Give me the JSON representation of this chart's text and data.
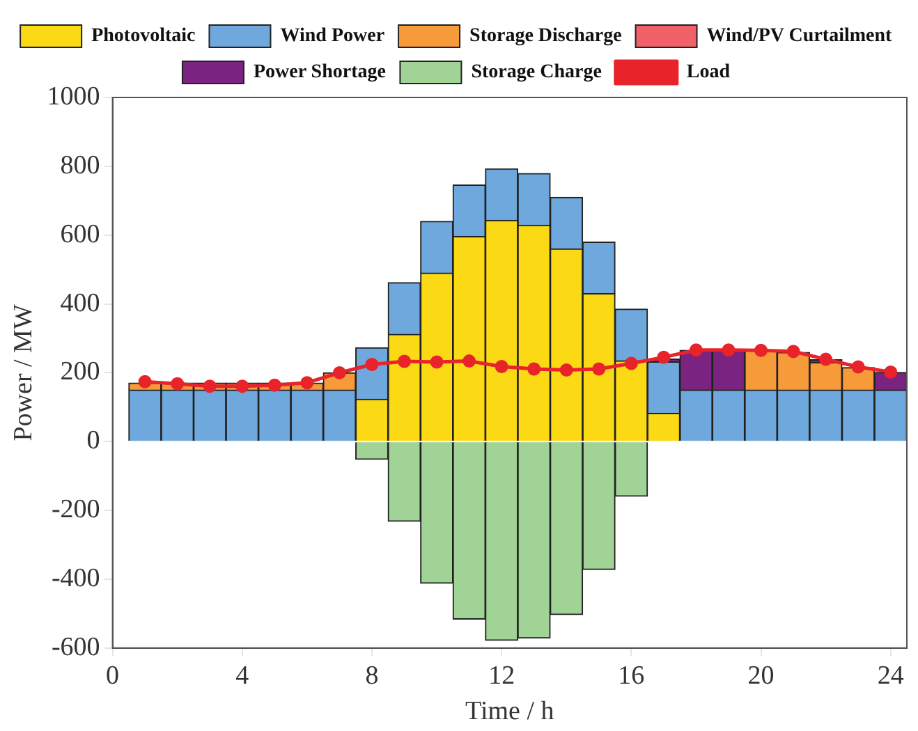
{
  "chart_data": {
    "type": "bar",
    "stacked": true,
    "xlabel": "Time / h",
    "ylabel": "Power / MW",
    "x": [
      1,
      2,
      3,
      4,
      5,
      6,
      7,
      8,
      9,
      10,
      11,
      12,
      13,
      14,
      15,
      16,
      17,
      18,
      19,
      20,
      21,
      22,
      23,
      24
    ],
    "xlim": [
      0,
      24.5
    ],
    "xticks": [
      0,
      4,
      8,
      12,
      16,
      20,
      24
    ],
    "ylim": [
      -600,
      1000
    ],
    "yticks": [
      -600,
      -400,
      -200,
      0,
      200,
      400,
      600,
      800,
      1000
    ],
    "grid": false,
    "legend": "top",
    "marker": "circle",
    "line_style": "solid",
    "series": [
      {
        "name": "Photovoltaic",
        "color": "#fbd914",
        "values": [
          null,
          null,
          null,
          null,
          null,
          null,
          null,
          123,
          312,
          490,
          596,
          643,
          629,
          560,
          430,
          235,
          82,
          null,
          null,
          null,
          null,
          null,
          null,
          null
        ]
      },
      {
        "name": "Wind Power",
        "color": "#6fa8dc",
        "values": [
          150,
          150,
          150,
          150,
          150,
          150,
          150,
          150,
          150,
          150,
          150,
          150,
          150,
          150,
          150,
          150,
          150,
          150,
          150,
          150,
          150,
          150,
          150,
          150
        ]
      },
      {
        "name": "Storage Discharge",
        "color": "#f79a3a",
        "values": [
          20,
          20,
          20,
          20,
          20,
          20,
          50,
          null,
          null,
          null,
          null,
          null,
          null,
          null,
          null,
          null,
          null,
          null,
          null,
          115,
          109,
          80,
          65,
          null
        ]
      },
      {
        "name": "Wind/PV Curtailment",
        "color": "#f0616a",
        "values": [
          null,
          null,
          null,
          null,
          null,
          null,
          null,
          null,
          null,
          null,
          null,
          null,
          null,
          null,
          null,
          null,
          null,
          null,
          null,
          null,
          null,
          null,
          null,
          null
        ]
      },
      {
        "name": "Power Shortage",
        "color": "#7b2380",
        "values": [
          null,
          null,
          null,
          null,
          null,
          null,
          null,
          null,
          null,
          null,
          null,
          null,
          null,
          null,
          null,
          null,
          8,
          115,
          115,
          null,
          null,
          8,
          null,
          51
        ]
      },
      {
        "name": "Storage Charge",
        "color": "#a1d296",
        "values": [
          null,
          null,
          null,
          null,
          null,
          null,
          null,
          -52,
          -232,
          -412,
          -516,
          -578,
          -571,
          -503,
          -372,
          -159,
          null,
          null,
          null,
          null,
          null,
          null,
          null,
          null
        ]
      },
      {
        "name": "Load",
        "type": "line",
        "color": "#e8232a",
        "values": [
          174,
          168,
          161,
          161,
          164,
          171,
          200,
          224,
          233,
          231,
          234,
          218,
          211,
          208,
          211,
          227,
          245,
          266,
          266,
          265,
          262,
          239,
          217,
          202
        ]
      }
    ]
  }
}
